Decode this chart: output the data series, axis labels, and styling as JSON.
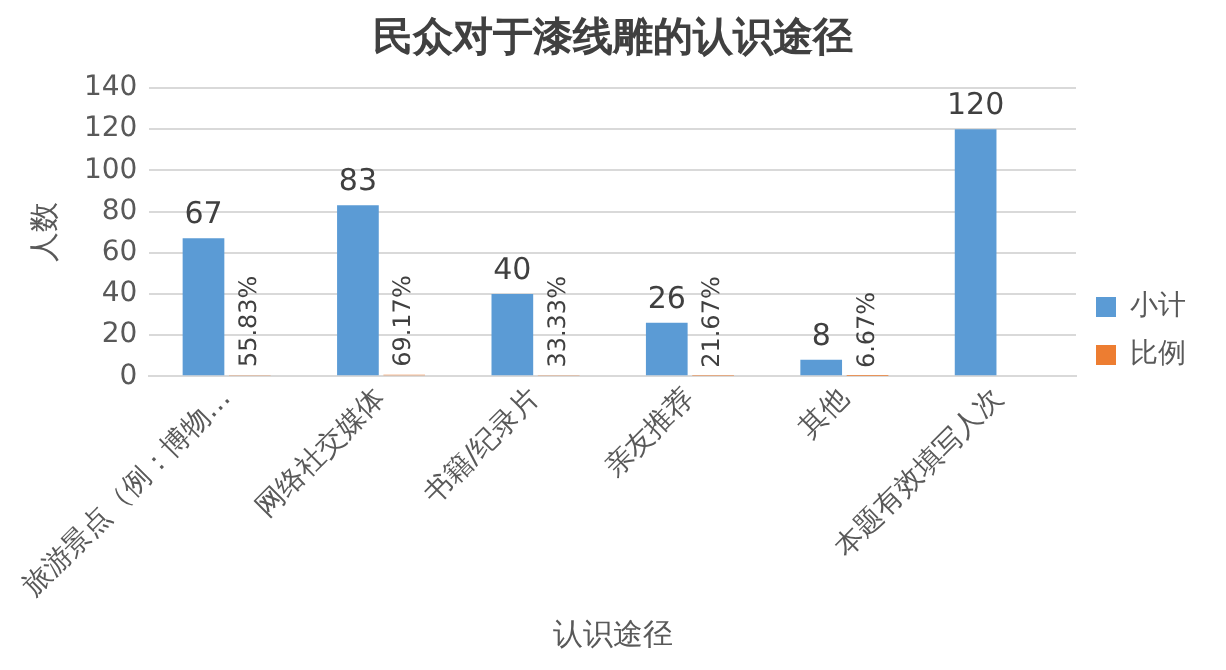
{
  "chart_data": {
    "type": "bar",
    "title": "民众对于漆线雕的认识途径",
    "xlabel": "认识途径",
    "ylabel": "人数",
    "categories": [
      "旅游景点（例：博物…",
      "网络社交媒体",
      "书籍/纪录片",
      "亲友推荐",
      "其他",
      "本题有效填写人次"
    ],
    "series": [
      {
        "name": "小计",
        "color": "#5b9bd5",
        "values": [
          67,
          83,
          40,
          26,
          8,
          120
        ],
        "value_labels": [
          "67",
          "83",
          "40",
          "26",
          "8",
          "120"
        ]
      },
      {
        "name": "比例",
        "color": "#ed7d31",
        "values": [
          0.5583,
          0.6917,
          0.3333,
          0.2167,
          0.0667,
          null
        ],
        "value_labels": [
          "55.83%",
          "69.17%",
          "33.33%",
          "21.67%",
          "6.67%",
          null
        ]
      }
    ],
    "ylim": [
      0,
      140
    ],
    "yticks": [
      0,
      20,
      40,
      60,
      80,
      100,
      120,
      140
    ],
    "grid": "y",
    "legend": "right"
  }
}
